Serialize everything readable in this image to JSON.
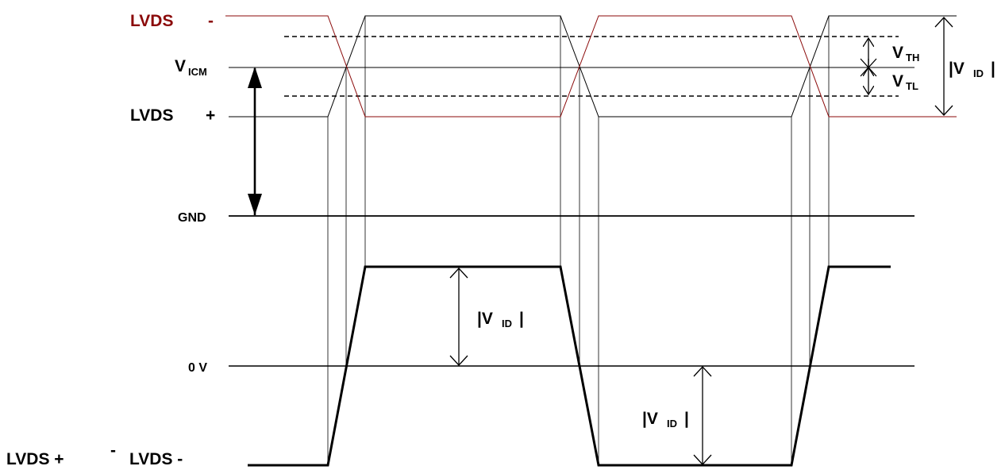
{
  "colors": {
    "lvds_minus": "#8B0A0A",
    "lvds_plus": "#000000",
    "reference": "#000000",
    "background": "#ffffff"
  },
  "labels": {
    "lvds_minus": "LVDS",
    "lvds_minus_sign": "-",
    "vicm_v": "V",
    "vicm_sub": "ICM",
    "lvds_plus": "LVDS",
    "lvds_plus_sign": "+",
    "gnd": "GND",
    "zero_v": "0 V",
    "diff_prefix": "LVDS +",
    "diff_sign": "-",
    "diff_suffix": "LVDS -",
    "vth_v": "V",
    "vth_sub": "TH",
    "vtl_v": "V",
    "vtl_sub": "TL",
    "vid_open": "|V",
    "vid_sub": "ID",
    "vid_close": "|"
  }
}
